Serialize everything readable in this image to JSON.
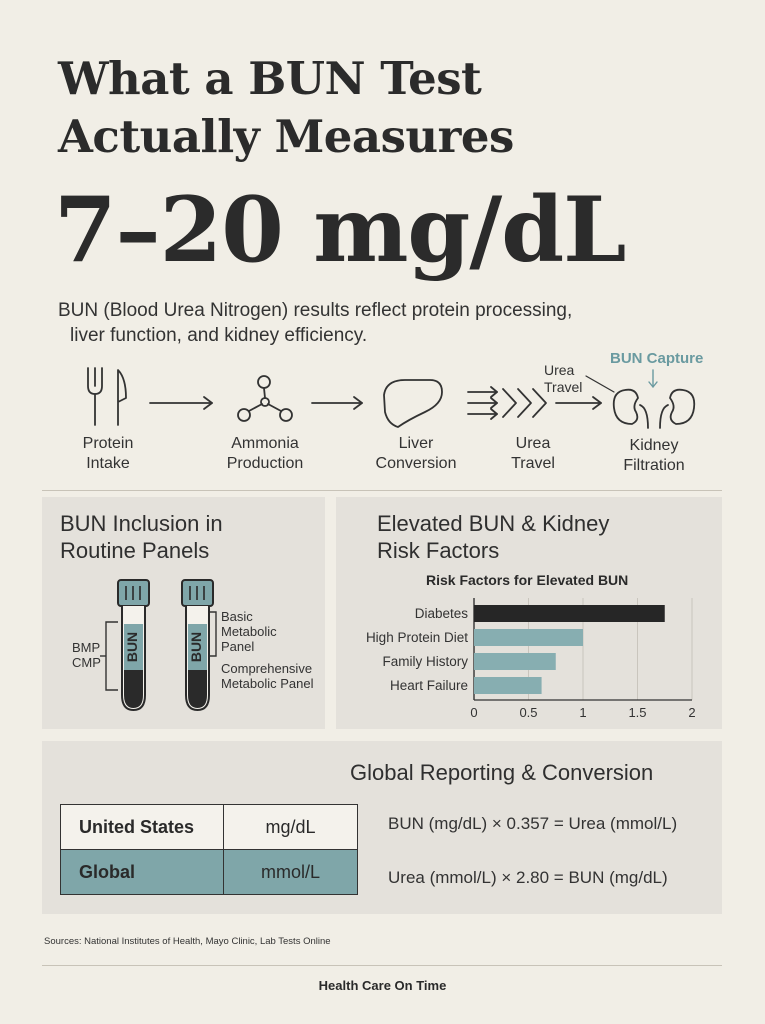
{
  "header": {
    "title_line1": "What a BUN Test",
    "title_line2": "Actually Measures",
    "hero_range": "7–20 mg/dL",
    "intro_line1": "BUN (Blood Urea Nitrogen) results reflect protein processing,",
    "intro_line2": "liver function, and kidney efficiency."
  },
  "flow": {
    "steps": [
      {
        "line1": "Protein",
        "line2": "Intake",
        "icon": "fork-knife-icon"
      },
      {
        "line1": "Ammonia",
        "line2": "Production",
        "icon": "molecule-icon"
      },
      {
        "line1": "Liver",
        "line2": "Conversion",
        "icon": "liver-icon"
      },
      {
        "line1": "Urea",
        "line2": "Travel",
        "icon": "chevrons-icon"
      },
      {
        "line1": "Kidney",
        "line2": "Filtration",
        "icon": "kidney-icon"
      }
    ],
    "note_urea_line1": "Urea",
    "note_urea_line2": "Travel",
    "note_capture": "BUN Capture"
  },
  "panels_left": {
    "title_line1": "BUN Inclusion in",
    "title_line2": "Routine Panels",
    "tube_text": "BUN",
    "bracket_line1": "BMP",
    "bracket_line2": "CMP",
    "bmp_line1": "Basic",
    "bmp_line2": "Metabolic",
    "bmp_line3": "Panel",
    "cmp_line1": "Comprehensive",
    "cmp_line2": "Metabolic Panel"
  },
  "panels_right": {
    "title_line1": "Elevated BUN & Kidney",
    "title_line2": "Risk Factors"
  },
  "chart_data": {
    "type": "bar",
    "orientation": "horizontal",
    "title": "Risk Factors for Elevated BUN",
    "categories": [
      "Diabetes",
      "High Protein Diet",
      "Family History",
      "Heart Failure"
    ],
    "values": [
      1.75,
      1.0,
      0.75,
      0.62
    ],
    "xlim": [
      0,
      2
    ],
    "xticks": [
      "0",
      "0.5",
      "1",
      "1.5",
      "2"
    ],
    "grid": true,
    "colors": [
      "#262626",
      "#87aeb1",
      "#87aeb1",
      "#87aeb1"
    ]
  },
  "conversion": {
    "title": "Global Reporting & Conversion",
    "rows": [
      {
        "region": "United States",
        "unit": "mg/dL"
      },
      {
        "region": "Global",
        "unit": "mmol/L"
      }
    ],
    "formula1": "BUN (mg/dL) × 0.357 = Urea (mmol/L)",
    "formula2": "Urea (mmol/L) × 2.80 = BUN (mg/dL)"
  },
  "footer": {
    "sources": "Sources: National Institutes of Health, Mayo Clinic, Lab Tests Online",
    "brand": "Health Care On Time"
  },
  "colors": {
    "background": "#f1eee6",
    "panel": "#e4e1db",
    "teal": "#7fa6a9",
    "dark": "#262626"
  }
}
